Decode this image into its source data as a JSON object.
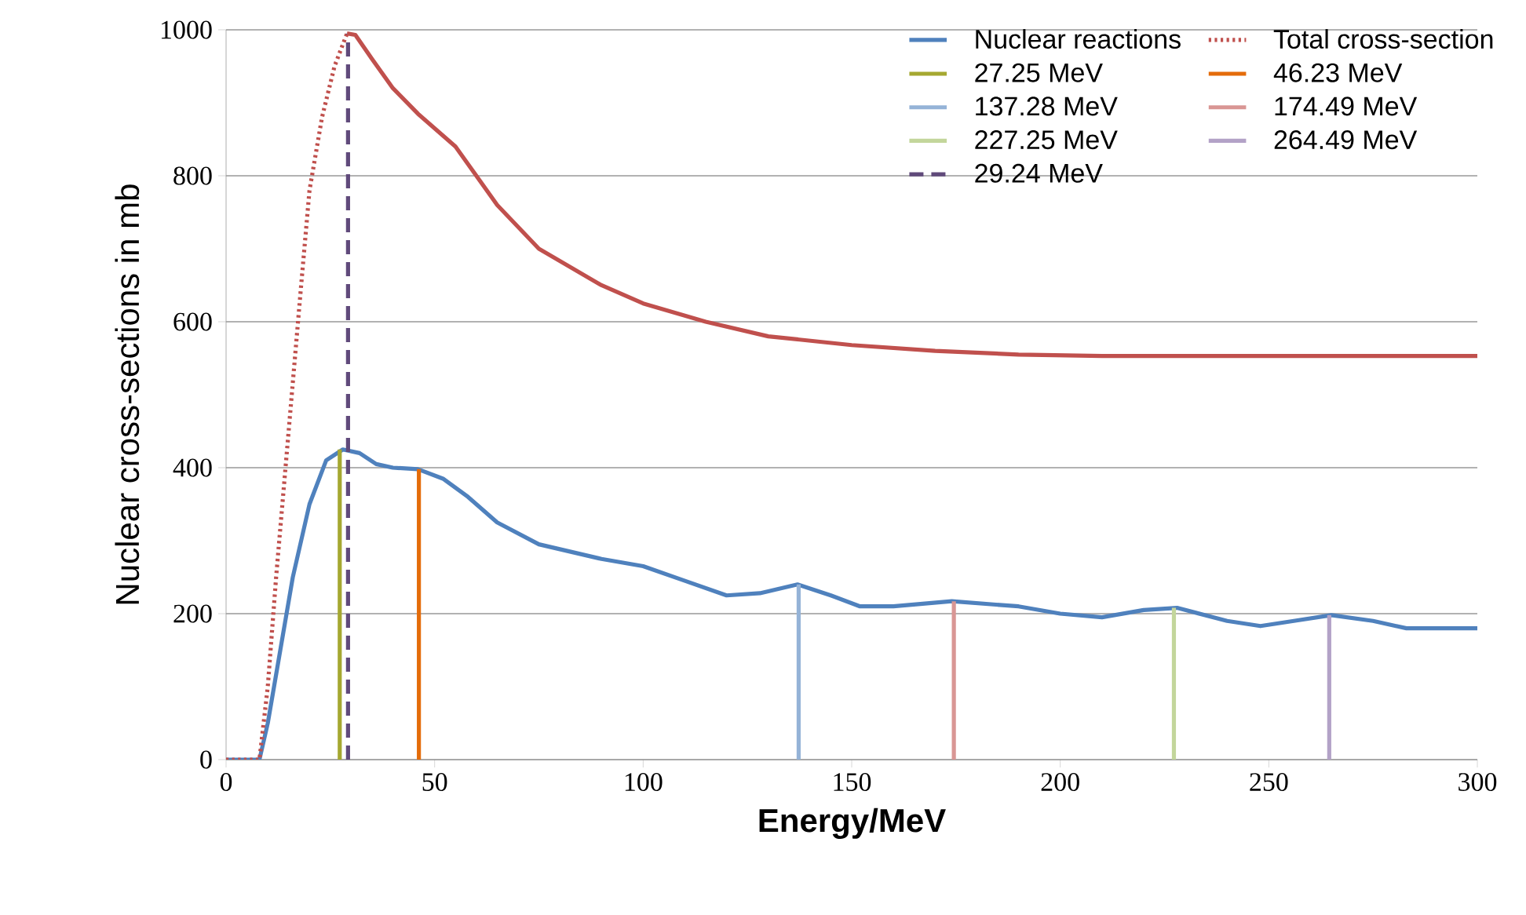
{
  "chart_data": {
    "type": "line",
    "xlabel": "Energy/MeV",
    "ylabel": "Nuclear cross-sections in mb",
    "xlim": [
      0,
      300
    ],
    "ylim": [
      0,
      1000
    ],
    "xticks": [
      0,
      50,
      100,
      150,
      200,
      250,
      300
    ],
    "yticks": [
      0,
      200,
      400,
      600,
      800,
      1000
    ],
    "grid": "y",
    "legend": "top right",
    "series": [
      {
        "name": "Nuclear reactions",
        "color": "#4f81bd",
        "line_style": "solid",
        "x": [
          0,
          8,
          10,
          13,
          16,
          20,
          24,
          28,
          32,
          36,
          40,
          46,
          52,
          58,
          65,
          75,
          90,
          100,
          110,
          120,
          128,
          137,
          145,
          152,
          160,
          174,
          190,
          200,
          210,
          220,
          228,
          240,
          248,
          256,
          265,
          275,
          283,
          300
        ],
        "values": [
          0,
          0,
          50,
          150,
          250,
          350,
          410,
          425,
          420,
          405,
          400,
          398,
          385,
          360,
          325,
          295,
          275,
          265,
          245,
          225,
          228,
          240,
          225,
          210,
          210,
          217,
          210,
          200,
          195,
          205,
          208,
          190,
          183,
          190,
          198,
          190,
          180,
          180
        ]
      },
      {
        "name": "Total cross-section",
        "color": "#c0504d",
        "line_style": "dotted",
        "x": [
          0,
          8,
          10,
          12,
          15,
          18,
          20,
          23,
          26,
          29
        ],
        "values": [
          0,
          0,
          100,
          250,
          450,
          650,
          780,
          880,
          950,
          995
        ]
      },
      {
        "name": "27.25 MeV",
        "color": "#a5a831",
        "line_style": "solid",
        "x": [
          27.25,
          27.25
        ],
        "values": [
          0,
          425
        ]
      },
      {
        "name": "46.23 MeV",
        "color": "#e46c0a",
        "line_style": "solid",
        "x": [
          46.23,
          46.23
        ],
        "values": [
          0,
          398
        ]
      },
      {
        "name": "137.28 MeV",
        "color": "#95b3d7",
        "line_style": "solid",
        "x": [
          137.28,
          137.28
        ],
        "values": [
          0,
          240
        ]
      },
      {
        "name": "174.49 MeV",
        "color": "#d99694",
        "line_style": "solid",
        "x": [
          174.49,
          174.49
        ],
        "values": [
          0,
          217
        ]
      },
      {
        "name": "227.25 MeV",
        "color": "#c3d69b",
        "line_style": "solid",
        "x": [
          227.25,
          227.25
        ],
        "values": [
          0,
          208
        ]
      },
      {
        "name": "264.49 MeV",
        "color": "#b3a2c7",
        "line_style": "solid",
        "x": [
          264.49,
          264.49
        ],
        "values": [
          0,
          198
        ]
      },
      {
        "name": "29.24 MeV",
        "color": "#604a7b",
        "line_style": "dashed",
        "x": [
          29.24,
          29.24
        ],
        "values": [
          0,
          995
        ]
      },
      {
        "color": "#c0504d",
        "line_style": "solid",
        "x": [
          29,
          31,
          35,
          40,
          46,
          55,
          65,
          75,
          90,
          100,
          115,
          130,
          150,
          170,
          190,
          210,
          300
        ],
        "values": [
          995,
          993,
          960,
          920,
          885,
          840,
          760,
          700,
          650,
          625,
          600,
          580,
          568,
          560,
          555,
          553,
          553
        ]
      }
    ]
  }
}
